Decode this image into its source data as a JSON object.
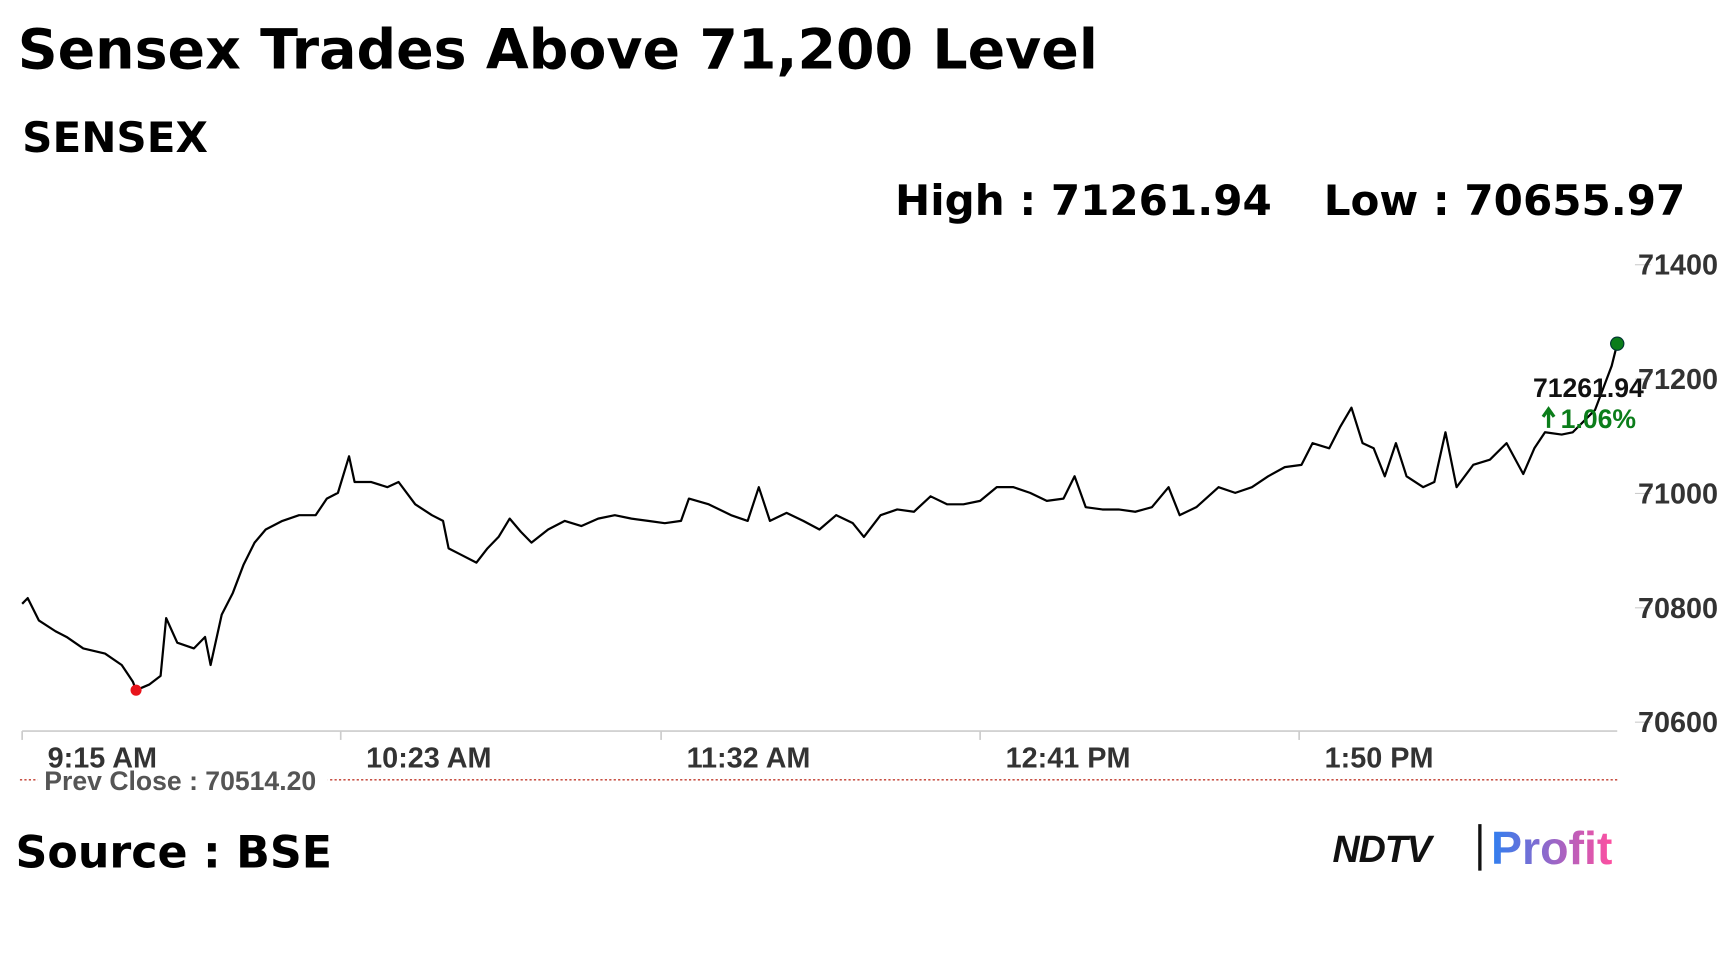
{
  "chart_data": {
    "type": "line",
    "title": "Sensex Trades Above 71,200 Level",
    "subtitle": "SENSEX",
    "high_label": "High : 71261.94",
    "low_label": "Low : 70655.97",
    "prev_close_label": "Prev Close : 70514.20",
    "last_value_label": "71261.94",
    "change_label": "1.06%",
    "source": "Source : BSE",
    "logo": {
      "brand": "NDTV",
      "product": "Profit"
    },
    "xlim": [
      0,
      344.5
    ],
    "xticks": [
      {
        "value": 0,
        "label": "9:15 AM"
      },
      {
        "value": 68.8,
        "label": "10:23 AM"
      },
      {
        "value": 138,
        "label": "11:32 AM"
      },
      {
        "value": 206.9,
        "label": "12:41 PM"
      },
      {
        "value": 275.8,
        "label": "1:50 PM"
      }
    ],
    "ylim": [
      70585,
      71400
    ],
    "yticks": [
      70600,
      70800,
      71000,
      71200,
      71400
    ],
    "grid": false,
    "series": [
      {
        "name": "SENSEX",
        "color": "#000000",
        "x": [
          0,
          1.2,
          3.6,
          7.2,
          9.6,
          13.2,
          17.9,
          21.5,
          23.9,
          24.6,
          27.5,
          29.9,
          31.1,
          33.5,
          37.1,
          39.5,
          40.7,
          43.1,
          45.5,
          47.8,
          50.2,
          52.6,
          56.2,
          59.8,
          63.4,
          65.8,
          68.2,
          70.6,
          71.8,
          75.4,
          78.9,
          81.3,
          84.9,
          88.5,
          90.9,
          92.1,
          94.5,
          98.1,
          100.5,
          102.9,
          105.3,
          107.7,
          110.0,
          113.6,
          117.2,
          120.8,
          124.4,
          128.0,
          131.6,
          135.2,
          138.8,
          142.3,
          144.0,
          148.3,
          153.1,
          156.7,
          159.1,
          161.5,
          165.1,
          168.7,
          172.2,
          175.8,
          179.4,
          181.8,
          185.4,
          189.0,
          192.6,
          196.2,
          199.8,
          203.3,
          206.9,
          210.5,
          214.1,
          217.7,
          221.3,
          224.9,
          227.3,
          229.7,
          233.3,
          236.8,
          240.4,
          244.0,
          247.6,
          250.0,
          253.6,
          258.4,
          262.0,
          265.6,
          269.1,
          272.7,
          276.3,
          278.7,
          282.3,
          284.7,
          287.1,
          289.5,
          291.9,
          294.3,
          296.7,
          299.0,
          302.6,
          305.0,
          307.4,
          309.8,
          313.4,
          317.0,
          320.6,
          324.2,
          326.6,
          328.9,
          332.5,
          334.9,
          339.7,
          343.3,
          344.5
        ],
        "values": [
          70807,
          70817,
          70778,
          70759,
          70749,
          70729,
          70720,
          70700,
          70671,
          70655.97,
          70666,
          70681,
          70782,
          70739,
          70729,
          70749,
          70700,
          70788,
          70826,
          70875,
          70914,
          70937,
          70952,
          70962,
          70962,
          70991,
          71001,
          71065,
          71020,
          71020,
          71011,
          71020,
          70981,
          70962,
          70952,
          70904,
          70894,
          70879,
          70904,
          70924,
          70956,
          70933,
          70914,
          70937,
          70952,
          70943,
          70956,
          70962,
          70956,
          70952,
          70948,
          70952,
          70991,
          70981,
          70962,
          70952,
          71011,
          70952,
          70966,
          70952,
          70937,
          70962,
          70948,
          70924,
          70962,
          70972,
          70968,
          70995,
          70981,
          70981,
          70987,
          71011,
          71011,
          71001,
          70987,
          70991,
          71030,
          70976,
          70972,
          70972,
          70968,
          70976,
          71011,
          70962,
          70976,
          71011,
          71001,
          71011,
          71030,
          71046,
          71050,
          71088,
          71079,
          71117,
          71150,
          71088,
          71079,
          71030,
          71088,
          71030,
          71011,
          71020,
          71107,
          71011,
          71050,
          71059,
          71088,
          71034,
          71079,
          71107,
          71103,
          71107,
          71146,
          71223,
          71261.94
        ]
      }
    ]
  }
}
